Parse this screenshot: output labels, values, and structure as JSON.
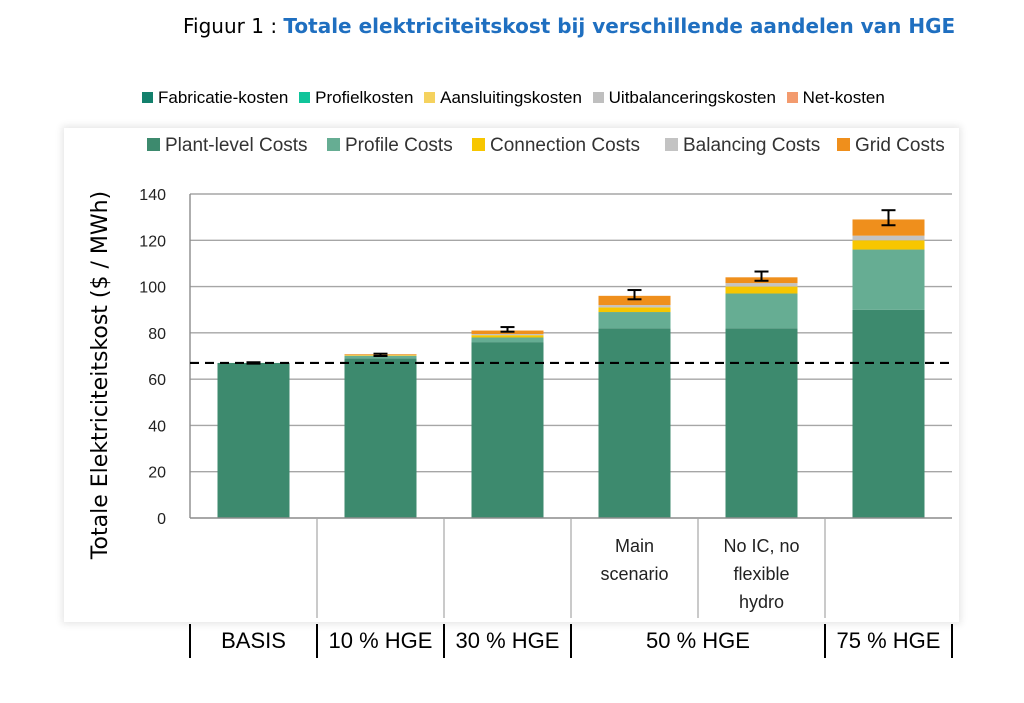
{
  "figure": {
    "prefix": "Figuur 1 : ",
    "title": "Totale elektriciteitskost bij verschillende aandelen van HGE"
  },
  "legend_nl": [
    {
      "label": "Fabricatie-kosten",
      "color": "#13806c"
    },
    {
      "label": "Profielkosten",
      "color": "#10c49a"
    },
    {
      "label": "Aansluitingskosten",
      "color": "#f5d25e"
    },
    {
      "label": "Uitbalanceringskosten",
      "color": "#bfbfbf"
    },
    {
      "label": "Net-kosten",
      "color": "#f39b6e"
    }
  ],
  "chart_data": {
    "type": "bar",
    "stacked": true,
    "ylabel": "Totale Elektriciteitskost ($ / MWh)",
    "ylim": [
      0,
      140
    ],
    "yticks": [
      0,
      20,
      40,
      60,
      80,
      100,
      120,
      140
    ],
    "grid": true,
    "legend_position": "top",
    "reference_line": {
      "y": 67,
      "style": "dashed"
    },
    "categories": [
      {
        "group": "BASIS",
        "label": ""
      },
      {
        "group": "10 % HGE",
        "label": ""
      },
      {
        "group": "30 % HGE",
        "label": ""
      },
      {
        "group": "50 % HGE",
        "label": "Main scenario",
        "lines": [
          "Main",
          "scenario"
        ]
      },
      {
        "group": "50 % HGE",
        "label": "No IC, no flexible hydro",
        "lines": [
          "No IC, no",
          "flexible",
          "hydro"
        ]
      },
      {
        "group": "75 % HGE",
        "label": "",
        "lines": []
      }
    ],
    "groups": [
      "BASIS",
      "10 % HGE",
      "30 % HGE",
      "50 % HGE",
      "75 % HGE"
    ],
    "series": [
      {
        "name": "Plant-level Costs",
        "color": "#3d8a6e",
        "values": [
          67,
          69,
          76,
          82,
          82,
          90
        ]
      },
      {
        "name": "Profile Costs",
        "color": "#66ad93",
        "values": [
          0,
          1,
          2,
          7,
          15,
          26
        ]
      },
      {
        "name": "Connection Costs",
        "color": "#f7c600",
        "values": [
          0,
          0.3,
          1,
          2,
          3,
          4
        ]
      },
      {
        "name": "Balancing Costs",
        "color": "#c3c3c3",
        "values": [
          0,
          0.2,
          0.5,
          1,
          1.5,
          2
        ]
      },
      {
        "name": "Grid Costs",
        "color": "#ef8f1c",
        "values": [
          0,
          0.3,
          1.5,
          4,
          2.5,
          7
        ]
      }
    ],
    "error_bars": [
      {
        "center": 67,
        "low": 66.7,
        "high": 67.3
      },
      {
        "center": 70.5,
        "low": 70,
        "high": 71
      },
      {
        "center": 81.5,
        "low": 80.5,
        "high": 82.5
      },
      {
        "center": 96.5,
        "low": 94.5,
        "high": 98.5
      },
      {
        "center": 104.5,
        "low": 102.5,
        "high": 106.5
      },
      {
        "center": 129.5,
        "low": 126.5,
        "high": 133
      }
    ]
  }
}
